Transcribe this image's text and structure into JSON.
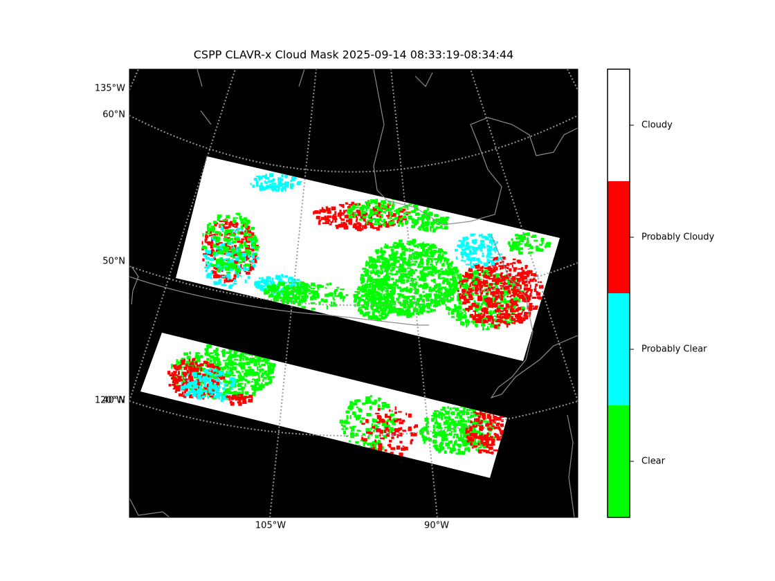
{
  "title": "CSPP CLAVR-x Cloud Mask 2025-09-14 08:33:19-08:34:44",
  "map": {
    "lon_labels_left": [
      "135°W",
      "120°W"
    ],
    "lat_labels": [
      "60°N",
      "50°N",
      "40°N"
    ],
    "lon_labels_bottom": [
      "105°W",
      "90°W"
    ]
  },
  "colorbar": {
    "categories": [
      {
        "label": "Clear",
        "color": "#00ff00"
      },
      {
        "label": "Probably Clear",
        "color": "#00ffff"
      },
      {
        "label": "Probably Cloudy",
        "color": "#ff0000"
      },
      {
        "label": "Cloudy",
        "color": "#ffffff"
      }
    ]
  }
}
